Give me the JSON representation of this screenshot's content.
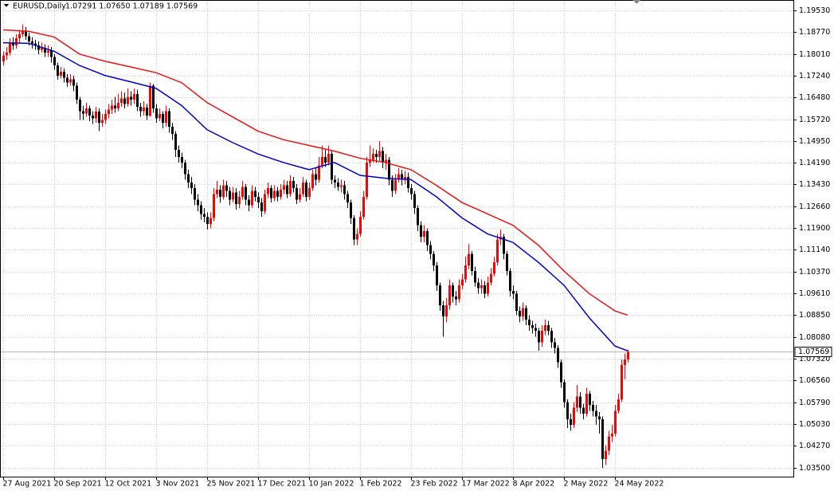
{
  "chart_data": {
    "type": "candlestick",
    "title": "EURUSD,Daily",
    "subtitle": "1.07291 1.07650 1.07189 1.07569",
    "categories": [
      "27 Aug 2021",
      null,
      null,
      null,
      null,
      null,
      null,
      null,
      null,
      null,
      null,
      null,
      null,
      null,
      null,
      null,
      "20 Sep 2021",
      null,
      null,
      null,
      null,
      null,
      null,
      null,
      null,
      null,
      null,
      null,
      null,
      null,
      null,
      null,
      "12 Oct 2021",
      null,
      null,
      null,
      null,
      null,
      null,
      null,
      null,
      null,
      null,
      null,
      null,
      null,
      null,
      null,
      "3 Nov 2021",
      null,
      null,
      null,
      null,
      null,
      null,
      null,
      null,
      null,
      null,
      null,
      null,
      null,
      null,
      null,
      "25 Nov 2021",
      null,
      null,
      null,
      null,
      null,
      null,
      null,
      null,
      null,
      null,
      null,
      null,
      null,
      null,
      null,
      "17 Dec 2021",
      null,
      null,
      null,
      null,
      null,
      null,
      null,
      null,
      null,
      null,
      null,
      null,
      null,
      null,
      null,
      "10 Jan 2022",
      null,
      null,
      null,
      null,
      null,
      null,
      null,
      null,
      null,
      null,
      null,
      null,
      null,
      null,
      null,
      "1 Feb 2022",
      null,
      null,
      null,
      null,
      null,
      null,
      null,
      null,
      null,
      null,
      null,
      null,
      null,
      null,
      null,
      "23 Feb 2022",
      null,
      null,
      null,
      null,
      null,
      null,
      null,
      null,
      null,
      null,
      null,
      null,
      null,
      null,
      null,
      "17 Mar 2022",
      null,
      null,
      null,
      null,
      null,
      null,
      null,
      null,
      null,
      null,
      null,
      null,
      null,
      null,
      null,
      "8 Apr 2022",
      null,
      null,
      null,
      null,
      null,
      null,
      null,
      null,
      null,
      null,
      null,
      null,
      null,
      null,
      null,
      "2 May 2022",
      null,
      null,
      null,
      null,
      null,
      null,
      null,
      null,
      null,
      null,
      null,
      null,
      null,
      null,
      null,
      "24 May 2022",
      null,
      null,
      null,
      null
    ],
    "open": [
      1.1775,
      1.1795,
      1.1805,
      1.184,
      1.183,
      1.1855,
      1.187,
      1.188,
      1.1862,
      1.1845,
      1.1838,
      1.183,
      1.1815,
      1.1822,
      1.1805,
      1.1812,
      1.179,
      1.176,
      1.1725,
      1.1738,
      1.1718,
      1.17,
      1.1712,
      1.169,
      1.164,
      1.16,
      1.1592,
      1.161,
      1.1585,
      1.1575,
      1.1598,
      1.156,
      1.157,
      1.159,
      1.1605,
      1.162,
      1.161,
      1.163,
      1.1645,
      1.1625,
      1.165,
      1.164,
      1.166,
      1.1615,
      1.16,
      1.1612,
      1.1585,
      1.169,
      1.161,
      1.1575,
      1.159,
      1.156,
      1.16,
      1.1545,
      1.152,
      1.1465,
      1.144,
      1.142,
      1.138,
      1.135,
      1.133,
      1.129,
      1.127,
      1.124,
      1.123,
      1.1205,
      1.1225,
      1.131,
      1.1325,
      1.13,
      1.134,
      1.132,
      1.129,
      1.1315,
      1.1275,
      1.13,
      1.1335,
      1.129,
      1.127,
      1.132,
      1.13,
      1.128,
      1.125,
      1.131,
      1.133,
      1.1295,
      1.132,
      1.13,
      1.1325,
      1.134,
      1.131,
      1.1355,
      1.133,
      1.129,
      1.131,
      1.135,
      1.13,
      1.133,
      1.138,
      1.136,
      1.141,
      1.144,
      1.142,
      1.145,
      1.136,
      1.135,
      1.1335,
      1.134,
      1.131,
      1.128,
      1.1225,
      1.115,
      1.117,
      1.123,
      1.13,
      1.142,
      1.143,
      1.145,
      1.144,
      1.146,
      1.142,
      1.143,
      1.136,
      1.132,
      1.136,
      1.138,
      1.136,
      1.137,
      1.133,
      1.131,
      1.126,
      1.12,
      1.116,
      1.118,
      1.113,
      1.11,
      1.106,
      1.099,
      1.092,
      1.088,
      1.092,
      1.099,
      1.095,
      1.094,
      1.099,
      1.101,
      1.106,
      1.11,
      1.104,
      1.1,
      1.098,
      1.099,
      1.096,
      1.1,
      1.103,
      1.107,
      1.115,
      1.116,
      1.11,
      1.104,
      1.097,
      1.096,
      1.09,
      1.088,
      1.091,
      1.087,
      1.085,
      1.084,
      1.083,
      1.079,
      1.083,
      1.085,
      1.083,
      1.079,
      1.077,
      1.072,
      1.065,
      1.058,
      1.052,
      1.05,
      1.056,
      1.06,
      1.056,
      1.054,
      1.061,
      1.057,
      1.055,
      1.053,
      1.052,
      1.038,
      1.041,
      1.046,
      1.047,
      1.055,
      1.059,
      1.071,
      1.07291
    ],
    "high": [
      1.181,
      1.1825,
      1.1855,
      1.186,
      1.187,
      1.1885,
      1.1905,
      1.1895,
      1.1875,
      1.186,
      1.185,
      1.1845,
      1.184,
      1.1835,
      1.183,
      1.1825,
      1.18,
      1.177,
      1.1755,
      1.175,
      1.173,
      1.173,
      1.1725,
      1.17,
      1.165,
      1.162,
      1.163,
      1.162,
      1.16,
      1.1615,
      1.161,
      1.159,
      1.1605,
      1.1625,
      1.164,
      1.165,
      1.166,
      1.167,
      1.1665,
      1.168,
      1.167,
      1.168,
      1.1675,
      1.163,
      1.1635,
      1.1625,
      1.17,
      1.1695,
      1.1625,
      1.161,
      1.16,
      1.162,
      1.161,
      1.156,
      1.153,
      1.148,
      1.1455,
      1.143,
      1.1395,
      1.137,
      1.1345,
      1.131,
      1.1285,
      1.126,
      1.1245,
      1.1245,
      1.133,
      1.1355,
      1.134,
      1.136,
      1.1355,
      1.1335,
      1.1335,
      1.133,
      1.132,
      1.1355,
      1.1345,
      1.1305,
      1.134,
      1.1335,
      1.1315,
      1.1295,
      1.1325,
      1.135,
      1.134,
      1.134,
      1.1335,
      1.1345,
      1.136,
      1.1355,
      1.1375,
      1.137,
      1.1345,
      1.133,
      1.137,
      1.136,
      1.135,
      1.1395,
      1.14,
      1.144,
      1.148,
      1.1465,
      1.148,
      1.146,
      1.1375,
      1.1365,
      1.136,
      1.1355,
      1.132,
      1.129,
      1.1235,
      1.119,
      1.125,
      1.132,
      1.144,
      1.148,
      1.147,
      1.1465,
      1.1495,
      1.1475,
      1.145,
      1.144,
      1.1375,
      1.138,
      1.14,
      1.1395,
      1.139,
      1.1385,
      1.1345,
      1.132,
      1.127,
      1.1215,
      1.12,
      1.119,
      1.1145,
      1.111,
      1.107,
      1.1,
      1.0935,
      1.0945,
      1.101,
      1.1,
      1.097,
      1.101,
      1.103,
      1.109,
      1.1135,
      1.111,
      1.1055,
      1.1015,
      1.101,
      1.1005,
      1.102,
      1.105,
      1.109,
      1.117,
      1.1185,
      1.117,
      1.111,
      1.105,
      1.099,
      1.097,
      1.0915,
      1.093,
      1.092,
      1.0885,
      1.0865,
      1.0855,
      1.084,
      1.085,
      1.087,
      1.0865,
      1.084,
      1.0805,
      1.078,
      1.073,
      1.066,
      1.059,
      1.054,
      1.058,
      1.064,
      1.0615,
      1.0575,
      1.063,
      1.062,
      1.0585,
      1.057,
      1.0545,
      1.053,
      1.043,
      1.048,
      1.05,
      1.057,
      1.061,
      1.073,
      1.075,
      1.0765
    ],
    "low": [
      1.176,
      1.178,
      1.1795,
      1.1815,
      1.182,
      1.184,
      1.186,
      1.185,
      1.183,
      1.182,
      1.1815,
      1.18,
      1.1805,
      1.179,
      1.179,
      1.177,
      1.1745,
      1.171,
      1.1715,
      1.17,
      1.1685,
      1.169,
      1.167,
      1.1625,
      1.157,
      1.157,
      1.158,
      1.1565,
      1.1555,
      1.156,
      1.153,
      1.1545,
      1.1555,
      1.1575,
      1.159,
      1.1595,
      1.16,
      1.1615,
      1.161,
      1.1615,
      1.162,
      1.1625,
      1.16,
      1.158,
      1.1585,
      1.157,
      1.158,
      1.1595,
      1.156,
      1.1565,
      1.154,
      1.1545,
      1.1525,
      1.15,
      1.144,
      1.142,
      1.14,
      1.136,
      1.133,
      1.131,
      1.127,
      1.125,
      1.122,
      1.121,
      1.1185,
      1.119,
      1.1215,
      1.1295,
      1.128,
      1.129,
      1.13,
      1.127,
      1.128,
      1.1255,
      1.126,
      1.129,
      1.127,
      1.125,
      1.126,
      1.1285,
      1.126,
      1.123,
      1.124,
      1.1295,
      1.128,
      1.1285,
      1.1285,
      1.129,
      1.131,
      1.1295,
      1.13,
      1.1315,
      1.1275,
      1.128,
      1.13,
      1.1285,
      1.129,
      1.132,
      1.134,
      1.135,
      1.14,
      1.1405,
      1.141,
      1.1345,
      1.133,
      1.132,
      1.1315,
      1.129,
      1.126,
      1.1205,
      1.113,
      1.113,
      1.116,
      1.122,
      1.129,
      1.1405,
      1.142,
      1.142,
      1.1425,
      1.14,
      1.1395,
      1.134,
      1.13,
      1.131,
      1.135,
      1.134,
      1.1345,
      1.1315,
      1.129,
      1.124,
      1.118,
      1.114,
      1.114,
      1.111,
      1.108,
      1.104,
      1.097,
      1.09,
      1.081,
      1.086,
      1.0905,
      1.093,
      1.092,
      1.093,
      1.0975,
      1.1,
      1.1045,
      1.1025,
      1.0985,
      1.096,
      1.096,
      1.0945,
      1.095,
      1.099,
      1.102,
      1.106,
      1.113,
      1.108,
      1.1025,
      1.095,
      1.094,
      1.0885,
      1.086,
      1.0865,
      1.085,
      1.083,
      1.082,
      1.081,
      1.076,
      1.0775,
      1.0815,
      1.0815,
      1.077,
      1.075,
      1.07,
      1.063,
      1.056,
      1.049,
      1.048,
      1.049,
      1.0545,
      1.054,
      1.052,
      1.053,
      1.055,
      1.053,
      1.05,
      1.047,
      1.035,
      1.036,
      1.0395,
      1.044,
      1.046,
      1.054,
      1.058,
      1.066,
      1.07189
    ],
    "close": [
      1.1795,
      1.1805,
      1.184,
      1.183,
      1.1855,
      1.187,
      1.188,
      1.1862,
      1.1845,
      1.1838,
      1.183,
      1.1815,
      1.1822,
      1.1805,
      1.1812,
      1.179,
      1.176,
      1.1725,
      1.1738,
      1.1718,
      1.17,
      1.1712,
      1.169,
      1.164,
      1.16,
      1.1592,
      1.161,
      1.1585,
      1.1575,
      1.1598,
      1.156,
      1.157,
      1.159,
      1.1605,
      1.162,
      1.161,
      1.163,
      1.1645,
      1.1625,
      1.165,
      1.164,
      1.166,
      1.1615,
      1.16,
      1.1612,
      1.1585,
      1.169,
      1.161,
      1.1575,
      1.159,
      1.156,
      1.16,
      1.1545,
      1.152,
      1.1465,
      1.144,
      1.142,
      1.138,
      1.135,
      1.133,
      1.129,
      1.127,
      1.124,
      1.123,
      1.1205,
      1.1225,
      1.131,
      1.1325,
      1.13,
      1.134,
      1.132,
      1.129,
      1.1315,
      1.1275,
      1.13,
      1.1335,
      1.129,
      1.127,
      1.132,
      1.13,
      1.128,
      1.125,
      1.131,
      1.133,
      1.1295,
      1.132,
      1.13,
      1.1325,
      1.134,
      1.131,
      1.1355,
      1.133,
      1.129,
      1.131,
      1.135,
      1.13,
      1.133,
      1.138,
      1.136,
      1.141,
      1.144,
      1.142,
      1.145,
      1.136,
      1.135,
      1.1335,
      1.134,
      1.131,
      1.128,
      1.1225,
      1.115,
      1.117,
      1.123,
      1.13,
      1.142,
      1.143,
      1.145,
      1.144,
      1.146,
      1.142,
      1.143,
      1.136,
      1.132,
      1.136,
      1.138,
      1.136,
      1.137,
      1.133,
      1.131,
      1.126,
      1.12,
      1.116,
      1.118,
      1.113,
      1.11,
      1.106,
      1.099,
      1.092,
      1.088,
      1.092,
      1.099,
      1.095,
      1.094,
      1.099,
      1.101,
      1.106,
      1.11,
      1.104,
      1.1,
      1.098,
      1.099,
      1.096,
      1.1,
      1.103,
      1.107,
      1.115,
      1.116,
      1.11,
      1.104,
      1.097,
      1.096,
      1.09,
      1.088,
      1.091,
      1.087,
      1.085,
      1.084,
      1.083,
      1.079,
      1.083,
      1.085,
      1.083,
      1.079,
      1.077,
      1.072,
      1.065,
      1.058,
      1.052,
      1.05,
      1.056,
      1.06,
      1.056,
      1.054,
      1.061,
      1.057,
      1.055,
      1.053,
      1.052,
      1.038,
      1.041,
      1.046,
      1.047,
      1.055,
      1.059,
      1.071,
      1.07291,
      1.07569
    ],
    "up_color": "#ff0000",
    "down_color": "#000000",
    "lines": [
      {
        "color": "#0000c8",
        "x": [
          0,
          8,
          16,
          24,
          32,
          40,
          48,
          56,
          64,
          72,
          80,
          88,
          96,
          104,
          112,
          120,
          128,
          136,
          144,
          152,
          160,
          168,
          176,
          184,
          192,
          196
        ],
        "values": [
          1.184,
          1.1838,
          1.181,
          1.176,
          1.1725,
          1.1703,
          1.168,
          1.162,
          1.1535,
          1.149,
          1.145,
          1.142,
          1.1395,
          1.142,
          1.1375,
          1.1365,
          1.136,
          1.13,
          1.1226,
          1.117,
          1.114,
          1.107,
          1.099,
          1.0875,
          1.0777,
          1.076
        ]
      },
      {
        "color": "#e61414",
        "x": [
          0,
          8,
          16,
          24,
          32,
          40,
          48,
          56,
          64,
          72,
          80,
          88,
          96,
          104,
          112,
          120,
          128,
          136,
          144,
          152,
          160,
          168,
          176,
          184,
          192,
          196
        ],
        "values": [
          1.1885,
          1.188,
          1.186,
          1.18,
          1.1775,
          1.1755,
          1.1735,
          1.17,
          1.163,
          1.158,
          1.153,
          1.15,
          1.148,
          1.146,
          1.1435,
          1.142,
          1.1395,
          1.134,
          1.128,
          1.124,
          1.12,
          1.113,
          1.104,
          1.096,
          1.09,
          1.0885
        ]
      }
    ],
    "current_price": 1.07569,
    "ylim": [
      1.0319,
      1.1987
    ],
    "yticks": [
      {
        "value": 1.1953,
        "label": "1.19530"
      },
      {
        "value": 1.1877,
        "label": "1.18770"
      },
      {
        "value": 1.1801,
        "label": "1.18010"
      },
      {
        "value": 1.1724,
        "label": "1.17240"
      },
      {
        "value": 1.1648,
        "label": "1.16480"
      },
      {
        "value": 1.1572,
        "label": "1.15720"
      },
      {
        "value": 1.1495,
        "label": "1.14950"
      },
      {
        "value": 1.1419,
        "label": "1.14190"
      },
      {
        "value": 1.1343,
        "label": "1.13430"
      },
      {
        "value": 1.1266,
        "label": "1.12660"
      },
      {
        "value": 1.119,
        "label": "1.11900"
      },
      {
        "value": 1.1114,
        "label": "1.11140"
      },
      {
        "value": 1.1037,
        "label": "1.10370"
      },
      {
        "value": 1.0961,
        "label": "1.09610"
      },
      {
        "value": 1.0885,
        "label": "1.08850"
      },
      {
        "value": 1.0808,
        "label": "1.08080"
      },
      {
        "value": 1.0732,
        "label": "1.07320"
      },
      {
        "value": 1.0656,
        "label": "1.06560"
      },
      {
        "value": 1.0579,
        "label": "1.05790"
      },
      {
        "value": 1.0503,
        "label": "1.05030"
      },
      {
        "value": 1.0427,
        "label": "1.04270"
      },
      {
        "value": 1.035,
        "label": "1.03500"
      }
    ],
    "grid": true
  }
}
